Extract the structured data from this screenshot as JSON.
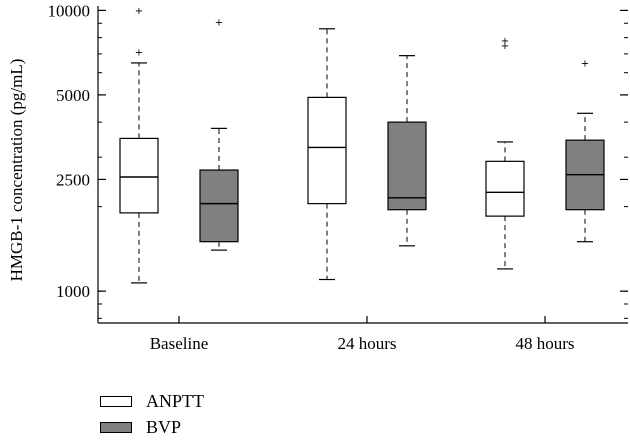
{
  "chart_data": {
    "type": "box",
    "ylabel": "HMGB-1 concentration (pg/mL)",
    "yscale": "log",
    "ylim": [
      770,
      10200
    ],
    "yticks": [
      1000,
      2500,
      5000,
      10000
    ],
    "categories": [
      "Baseline",
      "24 hours",
      "48 hours"
    ],
    "series": [
      {
        "name": "ANPTT",
        "color": "#ffffff",
        "boxes": [
          {
            "min": 1070,
            "q1": 1900,
            "median": 2550,
            "q3": 3500,
            "max": 6500,
            "outliers": [
              7100,
              10000
            ]
          },
          {
            "min": 1100,
            "q1": 2050,
            "median": 3250,
            "q3": 4900,
            "max": 8600,
            "outliers": []
          },
          {
            "min": 1200,
            "q1": 1850,
            "median": 2250,
            "q3": 2900,
            "max": 3400,
            "outliers": [
              7500,
              7800
            ]
          }
        ]
      },
      {
        "name": "BVP",
        "color": "#808080",
        "boxes": [
          {
            "min": 1400,
            "q1": 1500,
            "median": 2050,
            "q3": 2700,
            "max": 3800,
            "outliers": [
              9100
            ]
          },
          {
            "min": 1450,
            "q1": 1950,
            "median": 2150,
            "q3": 4000,
            "max": 6900,
            "outliers": []
          },
          {
            "min": 1500,
            "q1": 1950,
            "median": 2600,
            "q3": 3450,
            "max": 4300,
            "outliers": [
              6500
            ]
          }
        ]
      }
    ],
    "grid": false,
    "legend_position": "bottom-left"
  }
}
